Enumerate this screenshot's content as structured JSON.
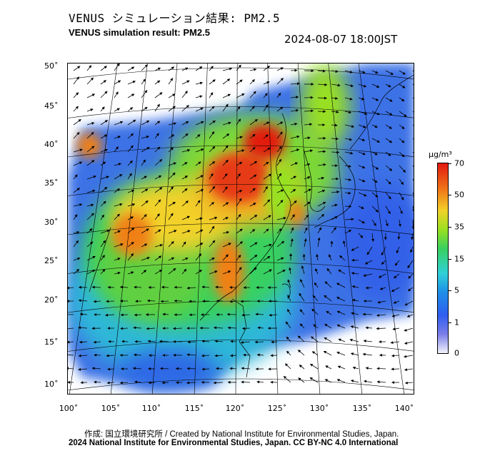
{
  "header": {
    "title_jp": "VENUS シミュレーション結果: PM2.5",
    "title_en": "VENUS simulation result: PM2.5",
    "timestamp": "2024-08-07 18:00JST"
  },
  "map": {
    "lat_labels": [
      "50˚",
      "45˚",
      "40˚",
      "35˚",
      "30˚",
      "25˚",
      "20˚",
      "15˚",
      "10˚"
    ],
    "lon_labels": [
      "100˚",
      "105˚",
      "110˚",
      "115˚",
      "120˚",
      "125˚",
      "130˚",
      "135˚",
      "140˚"
    ],
    "variable": "PM2.5"
  },
  "colorbar": {
    "unit": "µg/m³",
    "ticks": [
      "70",
      "50",
      "35",
      "15",
      "5",
      "1",
      "0"
    ],
    "colors": [
      "#e21a10",
      "#f07818",
      "#f2d22a",
      "#38d060",
      "#2fd0d8",
      "#1e8ee8",
      "#7a7ee8",
      "#f2f2fb"
    ]
  },
  "footer": {
    "credit": "作成: 国立環境研究所 / Created by National Institute for Environmental Studies, Japan.",
    "copyright": "2024 National Institute for Environmental Studies, Japan. CC BY-NC 4.0 International"
  }
}
